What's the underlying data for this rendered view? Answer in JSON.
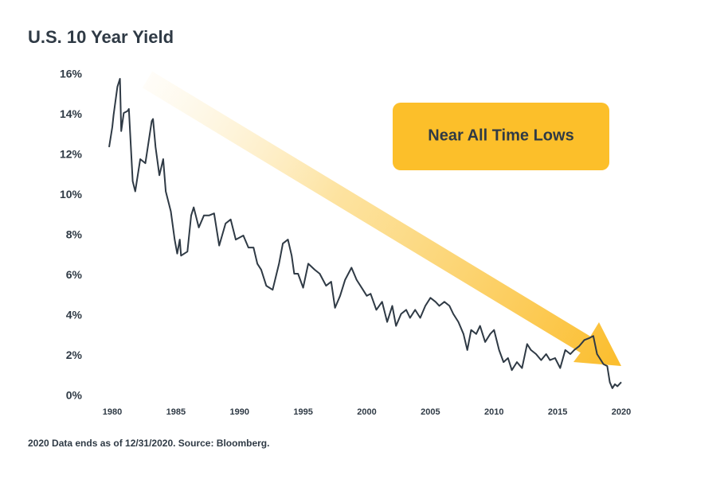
{
  "chart_data": {
    "type": "line",
    "title": "U.S. 10 Year Yield",
    "annotation": "Near All Time Lows",
    "footnote": "2020 Data ends as of 12/31/2020. Source: Bloomberg.",
    "xlim": [
      1980,
      2020
    ],
    "xticks": [
      1980,
      1985,
      1990,
      1995,
      2000,
      2005,
      2010,
      2015,
      2020
    ],
    "ylim": [
      0,
      16
    ],
    "yticks": [
      {
        "value": 0,
        "label": "0%"
      },
      {
        "value": 2,
        "label": "2%"
      },
      {
        "value": 4,
        "label": "4%"
      },
      {
        "value": 6,
        "label": "6%"
      },
      {
        "value": 8,
        "label": "8%"
      },
      {
        "value": 10,
        "label": "10%"
      },
      {
        "value": 12,
        "label": "12%"
      },
      {
        "value": 14,
        "label": "14%"
      },
      {
        "value": 16,
        "label": "16%"
      }
    ],
    "x": [
      1979.75,
      1980,
      1980.1,
      1980.4,
      1980.6,
      1980.7,
      1980.9,
      1981.2,
      1981.3,
      1981.6,
      1981.8,
      1982.2,
      1982.6,
      1983.1,
      1983.2,
      1983.4,
      1983.7,
      1984,
      1984.2,
      1984.6,
      1984.9,
      1985.1,
      1985.3,
      1985.4,
      1985.9,
      1986.2,
      1986.4,
      1986.8,
      1987.2,
      1987.6,
      1988,
      1988.4,
      1988.9,
      1989.3,
      1989.7,
      1990.3,
      1990.7,
      1991.1,
      1991.4,
      1991.7,
      1992.1,
      1992.6,
      1993.1,
      1993.4,
      1993.8,
      1994.1,
      1994.3,
      1994.6,
      1995,
      1995.4,
      1995.9,
      1996.3,
      1996.8,
      1997.2,
      1997.5,
      1997.9,
      1998.3,
      1998.8,
      1999.2,
      1999.7,
      2000,
      2000.3,
      2000.75,
      2001.2,
      2001.6,
      2002,
      2002.3,
      2002.7,
      2003.1,
      2003.4,
      2003.8,
      2004.2,
      2004.6,
      2005,
      2005.4,
      2005.7,
      2006.1,
      2006.5,
      2006.8,
      2007.2,
      2007.6,
      2007.9,
      2008.2,
      2008.6,
      2008.9,
      2009.3,
      2009.7,
      2010,
      2010.4,
      2010.75,
      2011.1,
      2011.4,
      2011.8,
      2012.2,
      2012.6,
      2012.9,
      2013.3,
      2013.7,
      2014.1,
      2014.4,
      2014.8,
      2015.2,
      2015.6,
      2016,
      2016.3,
      2016.7,
      2017.1,
      2017.5,
      2017.8,
      2018.1,
      2018.3,
      2018.6,
      2018.9,
      2019.1,
      2019.3,
      2019.5,
      2019.7,
      2020
    ],
    "series": [
      {
        "name": "U.S. 10 Year Yield",
        "color": "#2f3a45",
        "values": [
          12.4,
          13.4,
          14,
          15.4,
          15.8,
          13.2,
          14.1,
          14.2,
          14.3,
          10.7,
          10.2,
          11.8,
          11.6,
          13.7,
          13.8,
          12.4,
          11,
          11.8,
          10.2,
          9.2,
          7.8,
          7.1,
          7.8,
          7,
          7.2,
          9,
          9.4,
          8.4,
          9,
          9,
          9.1,
          7.5,
          8.6,
          8.8,
          7.8,
          8,
          7.4,
          7.4,
          6.6,
          6.3,
          5.5,
          5.3,
          6.6,
          7.6,
          7.8,
          7,
          6.1,
          6.1,
          5.4,
          6.6,
          6.3,
          6.1,
          5.5,
          5.7,
          4.4,
          5,
          5.8,
          6.4,
          5.8,
          5.3,
          5,
          5.1,
          4.3,
          4.7,
          3.7,
          4.5,
          3.5,
          4.1,
          4.3,
          3.9,
          4.3,
          3.9,
          4.5,
          4.9,
          4.7,
          4.5,
          4.7,
          4.5,
          4.1,
          3.7,
          3.1,
          2.3,
          3.3,
          3.1,
          3.5,
          2.7,
          3.1,
          3.3,
          2.3,
          1.7,
          1.9,
          1.3,
          1.7,
          1.4,
          2.6,
          2.3,
          2.1,
          1.8,
          2.1,
          1.8,
          1.9,
          1.4,
          2.3,
          2.1,
          2.3,
          2.5,
          2.8,
          2.9,
          3,
          2.1,
          1.9,
          1.6,
          1.5,
          0.7,
          0.4,
          0.6,
          0.5,
          0.7
        ]
      }
    ]
  }
}
